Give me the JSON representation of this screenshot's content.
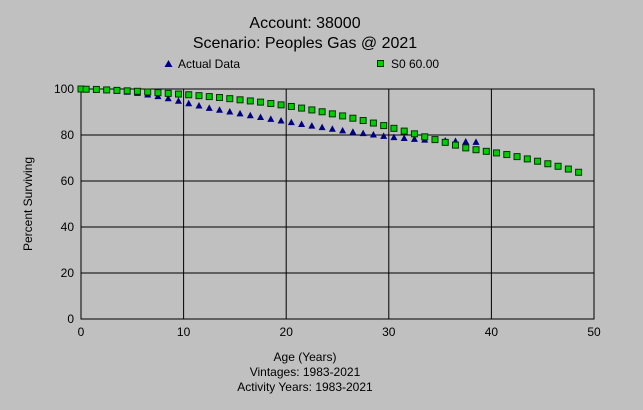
{
  "chart_data": {
    "type": "scatter",
    "title": "Account: 38000",
    "subtitle": "Scenario: Peoples Gas @ 2021",
    "xlabel": "Age (Years)",
    "ylabel": "Percent Surviving",
    "notes": [
      "Vintages: 1983-2021",
      "Activity Years: 1983-2021"
    ],
    "xlim": [
      0,
      50
    ],
    "ylim": [
      0,
      100
    ],
    "xticks": [
      "0",
      "10",
      "20",
      "30",
      "40",
      "50"
    ],
    "yticks": [
      "0",
      "20",
      "40",
      "60",
      "80",
      "100"
    ],
    "grid": true,
    "legend_position": "top",
    "series": [
      {
        "name": "Actual Data",
        "marker": "triangle",
        "color": "#000080",
        "x": [
          0,
          0.5,
          1.5,
          2.5,
          3.5,
          4.5,
          5.5,
          6.5,
          7.5,
          8.5,
          9.5,
          10.5,
          11.5,
          12.5,
          13.5,
          14.5,
          15.5,
          16.5,
          17.5,
          18.5,
          19.5,
          20.5,
          21.5,
          22.5,
          23.5,
          24.5,
          25.5,
          26.5,
          27.5,
          28.5,
          29.5,
          30.5,
          31.5,
          32.5,
          33.5,
          34.5,
          35.5,
          36.5,
          37.5,
          38.5
        ],
        "y": [
          100,
          99.9,
          99.8,
          99.5,
          99.2,
          98.8,
          98.3,
          97.6,
          96.9,
          96.0,
          94.9,
          93.8,
          92.8,
          91.8,
          91.0,
          90.2,
          89.4,
          88.6,
          87.8,
          87.0,
          86.3,
          85.6,
          84.8,
          84.1,
          83.4,
          82.7,
          82.0,
          81.4,
          80.8,
          80.2,
          79.6,
          79.1,
          78.7,
          78.3,
          78.0,
          77.8,
          77.6,
          77.4,
          77.2,
          77.0
        ]
      },
      {
        "name": "S0 60.00",
        "marker": "square",
        "color": "#00d000",
        "x": [
          0,
          0.5,
          1.5,
          2.5,
          3.5,
          4.5,
          5.5,
          6.5,
          7.5,
          8.5,
          9.5,
          10.5,
          11.5,
          12.5,
          13.5,
          14.5,
          15.5,
          16.5,
          17.5,
          18.5,
          19.5,
          20.5,
          21.5,
          22.5,
          23.5,
          24.5,
          25.5,
          26.5,
          27.5,
          28.5,
          29.5,
          30.5,
          31.5,
          32.5,
          33.5,
          34.5,
          35.5,
          36.5,
          37.5,
          38.5,
          39.5,
          40.5,
          41.5,
          42.5,
          43.5,
          44.5,
          45.5,
          46.5,
          47.5,
          48.5
        ],
        "y": [
          100,
          99.9,
          99.8,
          99.6,
          99.4,
          99.2,
          99.0,
          98.7,
          98.4,
          98.1,
          97.8,
          97.5,
          97.1,
          96.7,
          96.3,
          95.8,
          95.3,
          94.8,
          94.3,
          93.7,
          93.1,
          92.4,
          91.7,
          90.9,
          90.1,
          89.2,
          88.3,
          87.3,
          86.3,
          85.2,
          84.1,
          82.9,
          81.7,
          80.5,
          79.2,
          78.0,
          76.8,
          75.6,
          74.4,
          73.6,
          72.9,
          72.2,
          71.5,
          70.6,
          69.6,
          68.6,
          67.5,
          66.4,
          65.2,
          63.8
        ]
      }
    ]
  }
}
